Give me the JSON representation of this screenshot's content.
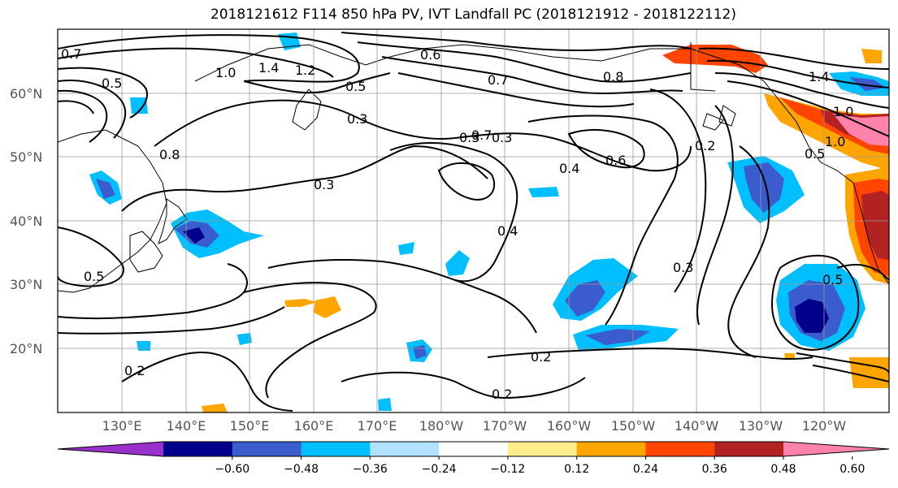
{
  "title": "2018121612 F114 850 hPa PV, IVT Landfall PC (2018121912 - 2018122112)",
  "lat_labels": [
    "60°N",
    "50°N",
    "40°N",
    "30°N",
    "20°N"
  ],
  "lon_labels": [
    "130°E",
    "140°E",
    "150°E",
    "160°E",
    "170°E",
    "180°W",
    "170°W",
    "160°W",
    "150°W",
    "140°W",
    "130°W",
    "120°W"
  ],
  "colorbar": {
    "ticks": [
      "−0.60",
      "−0.48",
      "−0.36",
      "−0.24",
      "−0.12",
      "0.12",
      "0.24",
      "0.36",
      "0.48",
      "0.60"
    ],
    "colors": [
      "#9932cc",
      "#00008b",
      "#3a5ccc",
      "#00bfff",
      "#b0e2ff",
      "#ffffff",
      "#ffec8b",
      "#ffa500",
      "#ff4500",
      "#b22222",
      "#ff82ab"
    ]
  },
  "contour_labels": [
    "0.7",
    "1.4",
    "1.2",
    "1.0",
    "0.5",
    "0.8",
    "0.6",
    "0.7",
    "0.5",
    "0.3",
    "0.3",
    "0.3",
    "0.3",
    "0.4",
    "0.4",
    "0.6",
    "0.8",
    "0.2",
    "1.0",
    "1.4",
    "1.0",
    "0.5",
    "0.7",
    "0.5",
    "0.2",
    "0.2",
    "0.2",
    "0.3",
    "0.5"
  ]
}
